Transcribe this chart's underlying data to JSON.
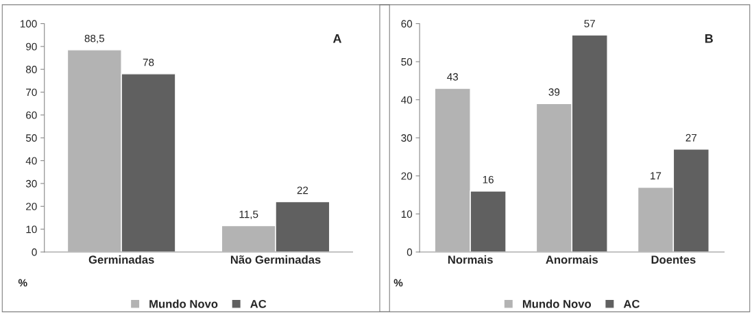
{
  "chart_data": [
    {
      "type": "bar",
      "annotations": [
        "A"
      ],
      "ylabel": "%",
      "categories": [
        "Germinadas",
        "Não Germinadas"
      ],
      "ylim": [
        0,
        100
      ],
      "yticks": [
        0,
        10,
        20,
        30,
        40,
        50,
        60,
        70,
        80,
        90,
        100
      ],
      "grid": false,
      "legend": "bottom",
      "series": [
        {
          "name": "Mundo Novo",
          "color": "#b3b3b3",
          "values": [
            88.5,
            11.5
          ],
          "value_labels": [
            "88,5",
            "11,5"
          ]
        },
        {
          "name": "AC",
          "color": "#606060",
          "values": [
            78,
            22
          ],
          "value_labels": [
            "78",
            "22"
          ]
        }
      ]
    },
    {
      "type": "bar",
      "annotations": [
        "B"
      ],
      "ylabel": "%",
      "categories": [
        "Normais",
        "Anormais",
        "Doentes"
      ],
      "ylim": [
        0,
        60
      ],
      "yticks": [
        0,
        10,
        20,
        30,
        40,
        50,
        60
      ],
      "grid": false,
      "legend": "bottom",
      "data_labels": true,
      "series": [
        {
          "name": "Mundo Novo",
          "color": "#b3b3b3",
          "values": [
            43,
            39,
            17
          ]
        },
        {
          "name": "AC",
          "color": "#606060",
          "values": [
            16,
            57,
            27
          ]
        }
      ]
    }
  ]
}
